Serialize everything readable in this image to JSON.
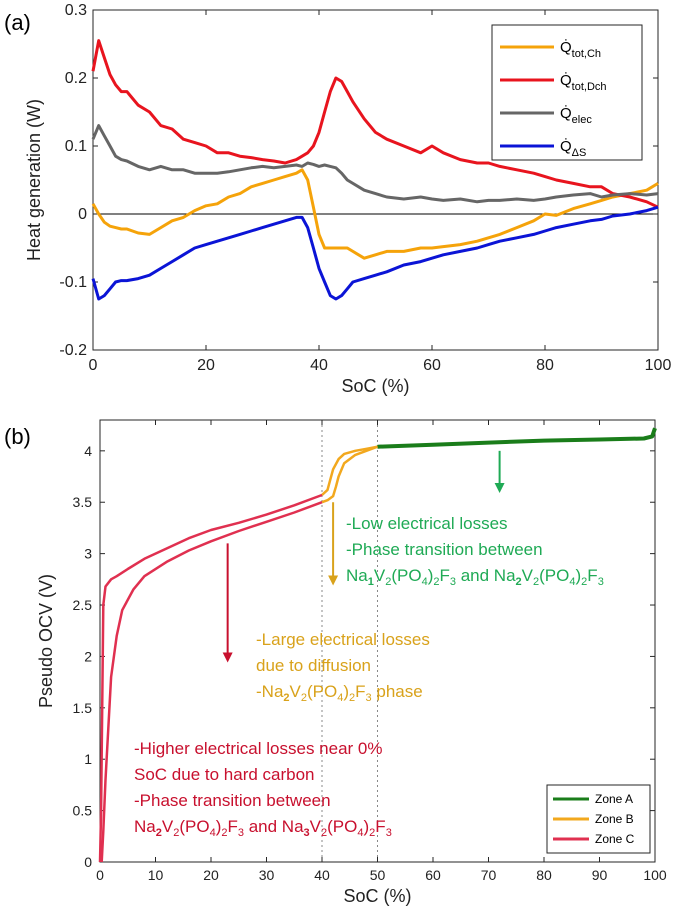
{
  "panel_a_label": "(a)",
  "panel_b_label": "(b)",
  "chart_data": [
    {
      "type": "line",
      "panel": "(a)",
      "xlabel": "SoC (%)",
      "ylabel": "Heat generation (W)",
      "xlim": [
        0,
        100
      ],
      "ylim": [
        -0.2,
        0.3
      ],
      "xticks": [
        0,
        20,
        40,
        60,
        80,
        100
      ],
      "yticks": [
        -0.2,
        -0.1,
        0,
        0.1,
        0.2,
        0.3
      ],
      "grid": false,
      "legend_position": "top-right",
      "x": [
        0,
        1,
        2,
        3,
        4,
        5,
        6,
        8,
        10,
        12,
        14,
        16,
        18,
        20,
        22,
        24,
        26,
        28,
        30,
        32,
        34,
        36,
        37,
        38,
        39,
        40,
        41,
        42,
        43,
        44,
        45,
        46,
        48,
        50,
        52,
        55,
        58,
        60,
        62,
        65,
        68,
        70,
        72,
        75,
        78,
        80,
        82,
        85,
        88,
        90,
        92,
        95,
        98,
        100
      ],
      "series": [
        {
          "name": "Q̇tot,Ch",
          "color": "#f5a30a",
          "values": [
            0.015,
            0.0,
            -0.012,
            -0.018,
            -0.02,
            -0.022,
            -0.022,
            -0.028,
            -0.03,
            -0.02,
            -0.01,
            -0.005,
            0.005,
            0.012,
            0.015,
            0.025,
            0.03,
            0.04,
            0.045,
            0.05,
            0.055,
            0.06,
            0.065,
            0.05,
            0.01,
            -0.03,
            -0.05,
            -0.05,
            -0.05,
            -0.05,
            -0.05,
            -0.055,
            -0.065,
            -0.06,
            -0.055,
            -0.055,
            -0.05,
            -0.05,
            -0.048,
            -0.045,
            -0.04,
            -0.035,
            -0.03,
            -0.02,
            -0.01,
            0.0,
            -0.002,
            0.008,
            0.015,
            0.02,
            0.025,
            0.03,
            0.035,
            0.045
          ]
        },
        {
          "name": "Q̇tot,Dch",
          "color": "#e8141e",
          "values": [
            0.21,
            0.255,
            0.23,
            0.205,
            0.19,
            0.18,
            0.18,
            0.16,
            0.15,
            0.13,
            0.125,
            0.11,
            0.105,
            0.1,
            0.09,
            0.09,
            0.085,
            0.083,
            0.08,
            0.078,
            0.075,
            0.08,
            0.085,
            0.09,
            0.1,
            0.12,
            0.15,
            0.18,
            0.2,
            0.195,
            0.18,
            0.165,
            0.14,
            0.12,
            0.11,
            0.1,
            0.09,
            0.1,
            0.09,
            0.08,
            0.075,
            0.075,
            0.07,
            0.065,
            0.06,
            0.055,
            0.05,
            0.045,
            0.04,
            0.04,
            0.03,
            0.025,
            0.018,
            0.01
          ]
        },
        {
          "name": "Q̇elec",
          "color": "#666666",
          "values": [
            0.11,
            0.13,
            0.115,
            0.1,
            0.085,
            0.08,
            0.078,
            0.07,
            0.065,
            0.07,
            0.065,
            0.065,
            0.06,
            0.06,
            0.06,
            0.062,
            0.065,
            0.068,
            0.07,
            0.068,
            0.07,
            0.072,
            0.07,
            0.075,
            0.073,
            0.07,
            0.072,
            0.07,
            0.068,
            0.06,
            0.05,
            0.045,
            0.035,
            0.03,
            0.025,
            0.022,
            0.025,
            0.022,
            0.02,
            0.022,
            0.018,
            0.02,
            0.02,
            0.022,
            0.02,
            0.022,
            0.025,
            0.028,
            0.03,
            0.025,
            0.028,
            0.03,
            0.028,
            0.03
          ]
        },
        {
          "name": "Q̇ΔS",
          "color": "#0b14d6",
          "values": [
            -0.095,
            -0.125,
            -0.12,
            -0.11,
            -0.1,
            -0.098,
            -0.098,
            -0.095,
            -0.09,
            -0.08,
            -0.07,
            -0.06,
            -0.05,
            -0.045,
            -0.04,
            -0.035,
            -0.03,
            -0.025,
            -0.02,
            -0.015,
            -0.01,
            -0.005,
            -0.005,
            -0.02,
            -0.05,
            -0.08,
            -0.1,
            -0.12,
            -0.125,
            -0.12,
            -0.11,
            -0.1,
            -0.095,
            -0.09,
            -0.085,
            -0.075,
            -0.07,
            -0.065,
            -0.06,
            -0.055,
            -0.05,
            -0.045,
            -0.04,
            -0.035,
            -0.03,
            -0.025,
            -0.02,
            -0.015,
            -0.01,
            -0.008,
            -0.003,
            0.0,
            0.005,
            0.01
          ]
        }
      ]
    },
    {
      "type": "line",
      "panel": "(b)",
      "xlabel": "SoC (%)",
      "ylabel": "Pseudo OCV (V)",
      "xlim": [
        0,
        100
      ],
      "ylim": [
        0,
        4.3
      ],
      "xticks": [
        0,
        10,
        20,
        30,
        40,
        50,
        60,
        70,
        80,
        90,
        100
      ],
      "yticks": [
        0,
        0.5,
        1,
        1.5,
        2,
        2.5,
        3,
        3.5,
        4
      ],
      "grid": false,
      "legend_position": "bottom-right",
      "zone_boundaries": [
        40,
        50
      ],
      "series": [
        {
          "name": "Zone A",
          "color": "#1a7d1a",
          "x": [
            50,
            60,
            70,
            80,
            90,
            98,
            99.5,
            100
          ],
          "values": [
            4.04,
            4.06,
            4.08,
            4.1,
            4.11,
            4.12,
            4.14,
            4.22
          ]
        },
        {
          "name": "Zone B",
          "color": "#f2a81e",
          "x": [
            40,
            41,
            41.5,
            42,
            43,
            44,
            46,
            48,
            50
          ],
          "values": [
            3.57,
            3.62,
            3.72,
            3.82,
            3.92,
            3.97,
            4.0,
            4.02,
            4.04
          ]
        },
        {
          "name": "Zone C",
          "color": "#e03050",
          "x": [
            0,
            0.2,
            0.4,
            0.6,
            1,
            2,
            3,
            5,
            8,
            12,
            16,
            20,
            25,
            30,
            35,
            40
          ],
          "values": [
            0,
            0.5,
            1.5,
            2.5,
            2.68,
            2.75,
            2.78,
            2.85,
            2.95,
            3.05,
            3.15,
            3.23,
            3.3,
            3.38,
            3.47,
            3.57
          ]
        },
        {
          "name": "",
          "color": "#f2a81e",
          "x": [
            40,
            41,
            42,
            42.5,
            43,
            44,
            46,
            48,
            50
          ],
          "values": [
            3.5,
            3.52,
            3.56,
            3.65,
            3.75,
            3.88,
            3.96,
            4.0,
            4.04
          ]
        },
        {
          "name": "",
          "color": "#e03050",
          "x": [
            0.3,
            0.6,
            1,
            1.5,
            2,
            3,
            4,
            6,
            8,
            12,
            16,
            20,
            25,
            30,
            35,
            40
          ],
          "values": [
            0,
            0.3,
            0.8,
            1.3,
            1.8,
            2.2,
            2.45,
            2.65,
            2.78,
            2.92,
            3.03,
            3.12,
            3.22,
            3.31,
            3.4,
            3.5
          ]
        }
      ],
      "annotations": [
        {
          "color": "#1faa55",
          "arrow_x": 72,
          "arrow_from": 4.0,
          "arrow_to": 3.6,
          "lines": [
            [
              {
                "t": "-Low electrical losses"
              }
            ],
            [
              {
                "t": "-Phase transition between"
              }
            ],
            [
              {
                "t": "Na"
              },
              {
                "t": "1",
                "b": true,
                "s": true
              },
              {
                "t": "V"
              },
              {
                "t": "2",
                "s": true
              },
              {
                "t": "(PO"
              },
              {
                "t": "4",
                "s": true
              },
              {
                "t": ")"
              },
              {
                "t": "2",
                "s": true
              },
              {
                "t": "F"
              },
              {
                "t": "3",
                "s": true
              },
              {
                "t": " and Na"
              },
              {
                "t": "2",
                "b": true,
                "s": true
              },
              {
                "t": "V"
              },
              {
                "t": "2",
                "s": true
              },
              {
                "t": "(PO"
              },
              {
                "t": "4",
                "s": true
              },
              {
                "t": ")"
              },
              {
                "t": "2",
                "s": true
              },
              {
                "t": "F"
              },
              {
                "t": "3",
                "s": true
              }
            ]
          ]
        },
        {
          "color": "#d9a21b",
          "arrow_x": 42,
          "arrow_from": 3.5,
          "arrow_to": 2.7,
          "lines": [
            [
              {
                "t": "-Large electrical losses"
              }
            ],
            [
              {
                "t": "due to diffusion"
              }
            ],
            [
              {
                "t": "-Na"
              },
              {
                "t": "2",
                "b": true,
                "s": true
              },
              {
                "t": "V"
              },
              {
                "t": "2",
                "s": true
              },
              {
                "t": "(PO"
              },
              {
                "t": "4",
                "s": true
              },
              {
                "t": ")"
              },
              {
                "t": "2",
                "s": true
              },
              {
                "t": "F"
              },
              {
                "t": "3",
                "s": true
              },
              {
                "t": " phase"
              }
            ]
          ]
        },
        {
          "color": "#c8102e",
          "arrow_x": 23,
          "arrow_from": 3.1,
          "arrow_to": 1.95,
          "lines": [
            [
              {
                "t": "-Higher electrical losses near 0%"
              }
            ],
            [
              {
                "t": "SoC due to hard carbon"
              }
            ],
            [
              {
                "t": "-Phase transition between"
              }
            ],
            [
              {
                "t": "Na"
              },
              {
                "t": "2",
                "b": true,
                "s": true
              },
              {
                "t": "V"
              },
              {
                "t": "2",
                "s": true
              },
              {
                "t": "(PO"
              },
              {
                "t": "4",
                "s": true
              },
              {
                "t": ")"
              },
              {
                "t": "2",
                "s": true
              },
              {
                "t": "F"
              },
              {
                "t": "3",
                "s": true
              },
              {
                "t": " and Na"
              },
              {
                "t": "3",
                "b": true,
                "s": true
              },
              {
                "t": "V"
              },
              {
                "t": "2",
                "s": true
              },
              {
                "t": "(PO"
              },
              {
                "t": "4",
                "s": true
              },
              {
                "t": ")"
              },
              {
                "t": "2",
                "s": true
              },
              {
                "t": "F"
              },
              {
                "t": "3",
                "s": true
              }
            ]
          ]
        }
      ]
    }
  ]
}
